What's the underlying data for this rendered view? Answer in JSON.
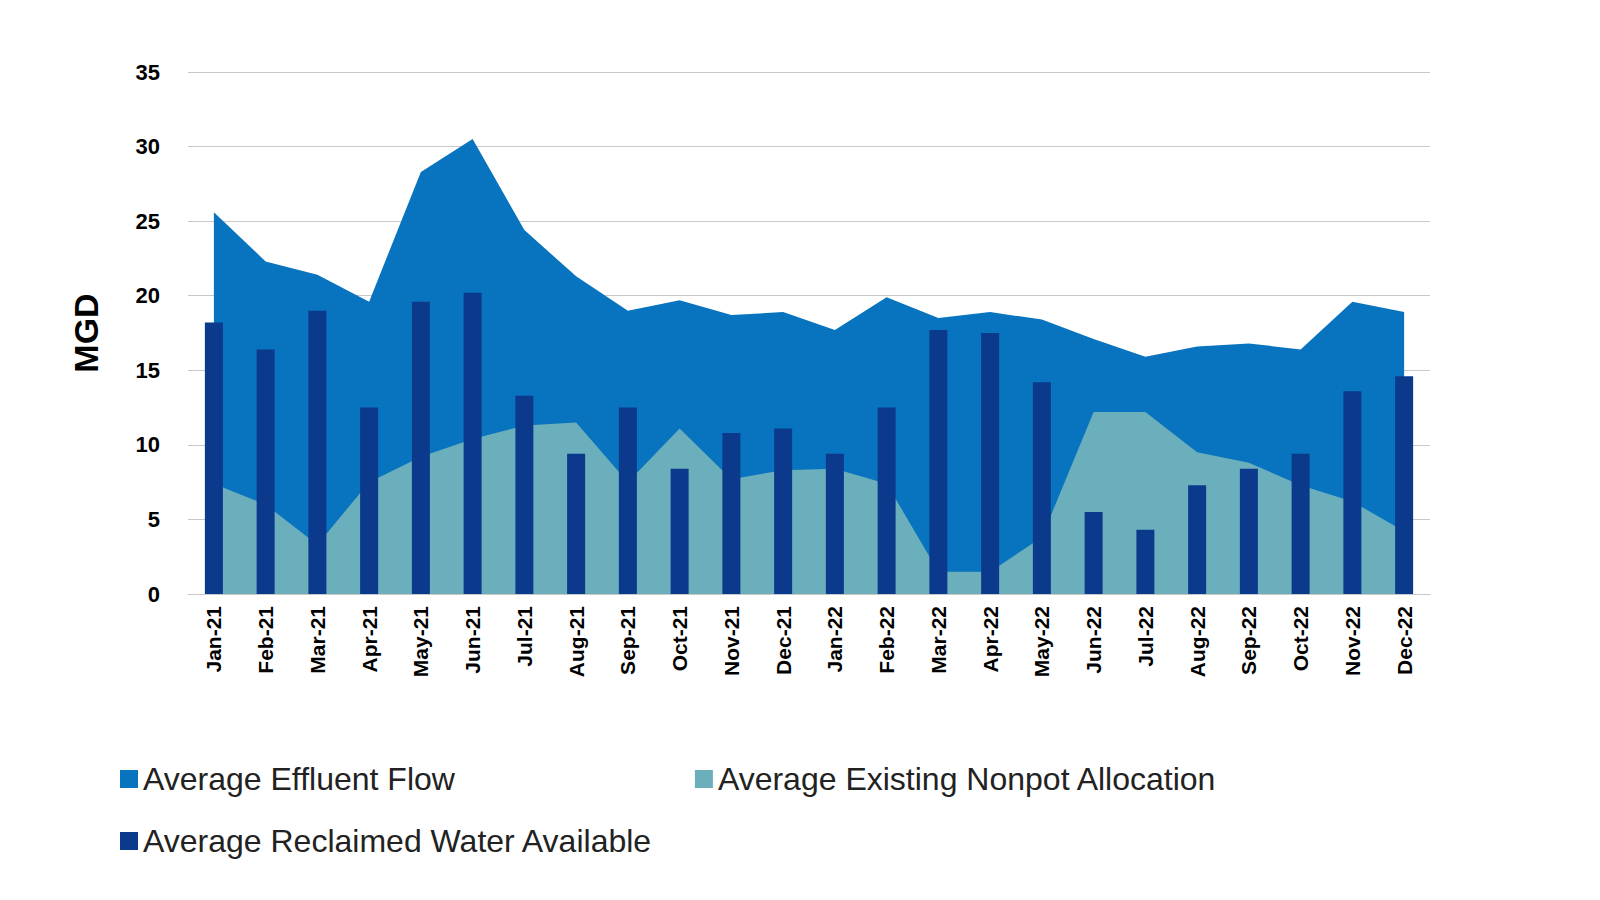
{
  "chart_data": {
    "type": "bar",
    "y_label": "MGD",
    "categories": [
      "Jan-21",
      "Feb-21",
      "Mar-21",
      "Apr-21",
      "May-21",
      "Jun-21",
      "Jul-21",
      "Aug-21",
      "Sep-21",
      "Oct-21",
      "Nov-21",
      "Dec-21",
      "Jan-22",
      "Feb-22",
      "Mar-22",
      "Apr-22",
      "May-22",
      "Jun-22",
      "Jul-22",
      "Aug-22",
      "Sep-22",
      "Oct-22",
      "Nov-22",
      "Dec-22"
    ],
    "series": [
      {
        "name": "Average Effluent Flow",
        "type": "area",
        "color": "#0873be",
        "values": [
          25.6,
          22.3,
          21.4,
          19.6,
          28.3,
          30.5,
          24.4,
          21.3,
          19.0,
          19.7,
          18.7,
          18.9,
          17.7,
          19.9,
          18.5,
          18.9,
          18.4,
          17.1,
          15.9,
          16.6,
          16.8,
          16.4,
          19.6,
          18.9
        ]
      },
      {
        "name": "Average Existing Nonpot Allocation",
        "type": "area",
        "color": "#6aafbb",
        "values": [
          7.4,
          6.0,
          3.3,
          7.5,
          9.2,
          10.4,
          11.3,
          11.5,
          7.5,
          11.1,
          7.7,
          8.3,
          8.4,
          7.4,
          1.5,
          1.5,
          3.8,
          12.2,
          12.2,
          9.5,
          8.8,
          7.3,
          6.2,
          4.2
        ]
      },
      {
        "name": "Average Reclaimed Water Available",
        "type": "bar",
        "color": "#0b3a8c",
        "values": [
          18.2,
          16.4,
          19.0,
          12.5,
          19.6,
          20.2,
          13.3,
          9.4,
          12.5,
          8.4,
          10.8,
          11.1,
          9.4,
          12.5,
          17.7,
          17.5,
          14.2,
          5.5,
          4.3,
          7.3,
          8.4,
          9.4,
          13.6,
          14.6
        ]
      }
    ],
    "ylim": [
      0,
      35
    ],
    "yticks": [
      0,
      5,
      10,
      15,
      20,
      25,
      30,
      35
    ],
    "grid": true,
    "legend": "bottom"
  }
}
